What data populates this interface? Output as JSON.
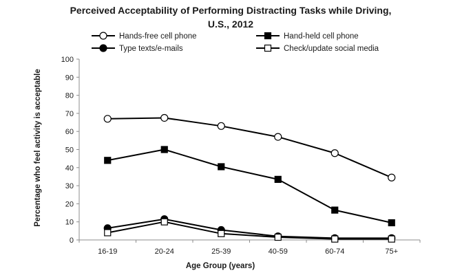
{
  "chart_data": {
    "type": "line",
    "title": "Perceived Acceptability of Performing Distracting Tasks while Driving,",
    "subtitle": "U.S., 2012",
    "xlabel": "Age Group (years)",
    "ylabel": "Percentage  who feel activity is acceptable",
    "categories": [
      "16-19",
      "20-24",
      "25-39",
      "40-59",
      "60-74",
      "75+"
    ],
    "ylim": [
      0,
      100
    ],
    "yticks": [
      "0",
      "10",
      "20",
      "30",
      "40",
      "50",
      "60",
      "70",
      "80",
      "90",
      "100"
    ],
    "grid": false,
    "legend_position": "top",
    "series": [
      {
        "name": "Hands-free cell phone",
        "marker": "open-circle",
        "values": [
          67,
          67.5,
          63,
          57,
          48,
          34.5
        ]
      },
      {
        "name": "Hand-held cell phone",
        "marker": "filled-square",
        "values": [
          44,
          50,
          40.5,
          33.5,
          16.5,
          9.5
        ]
      },
      {
        "name": "Type texts/e-mails",
        "marker": "filled-circle",
        "values": [
          6.5,
          11.5,
          5.5,
          2,
          1,
          1
        ]
      },
      {
        "name": "Check/update social media",
        "marker": "open-square",
        "values": [
          4,
          10,
          3.5,
          1.5,
          0.5,
          0.5
        ]
      }
    ]
  }
}
